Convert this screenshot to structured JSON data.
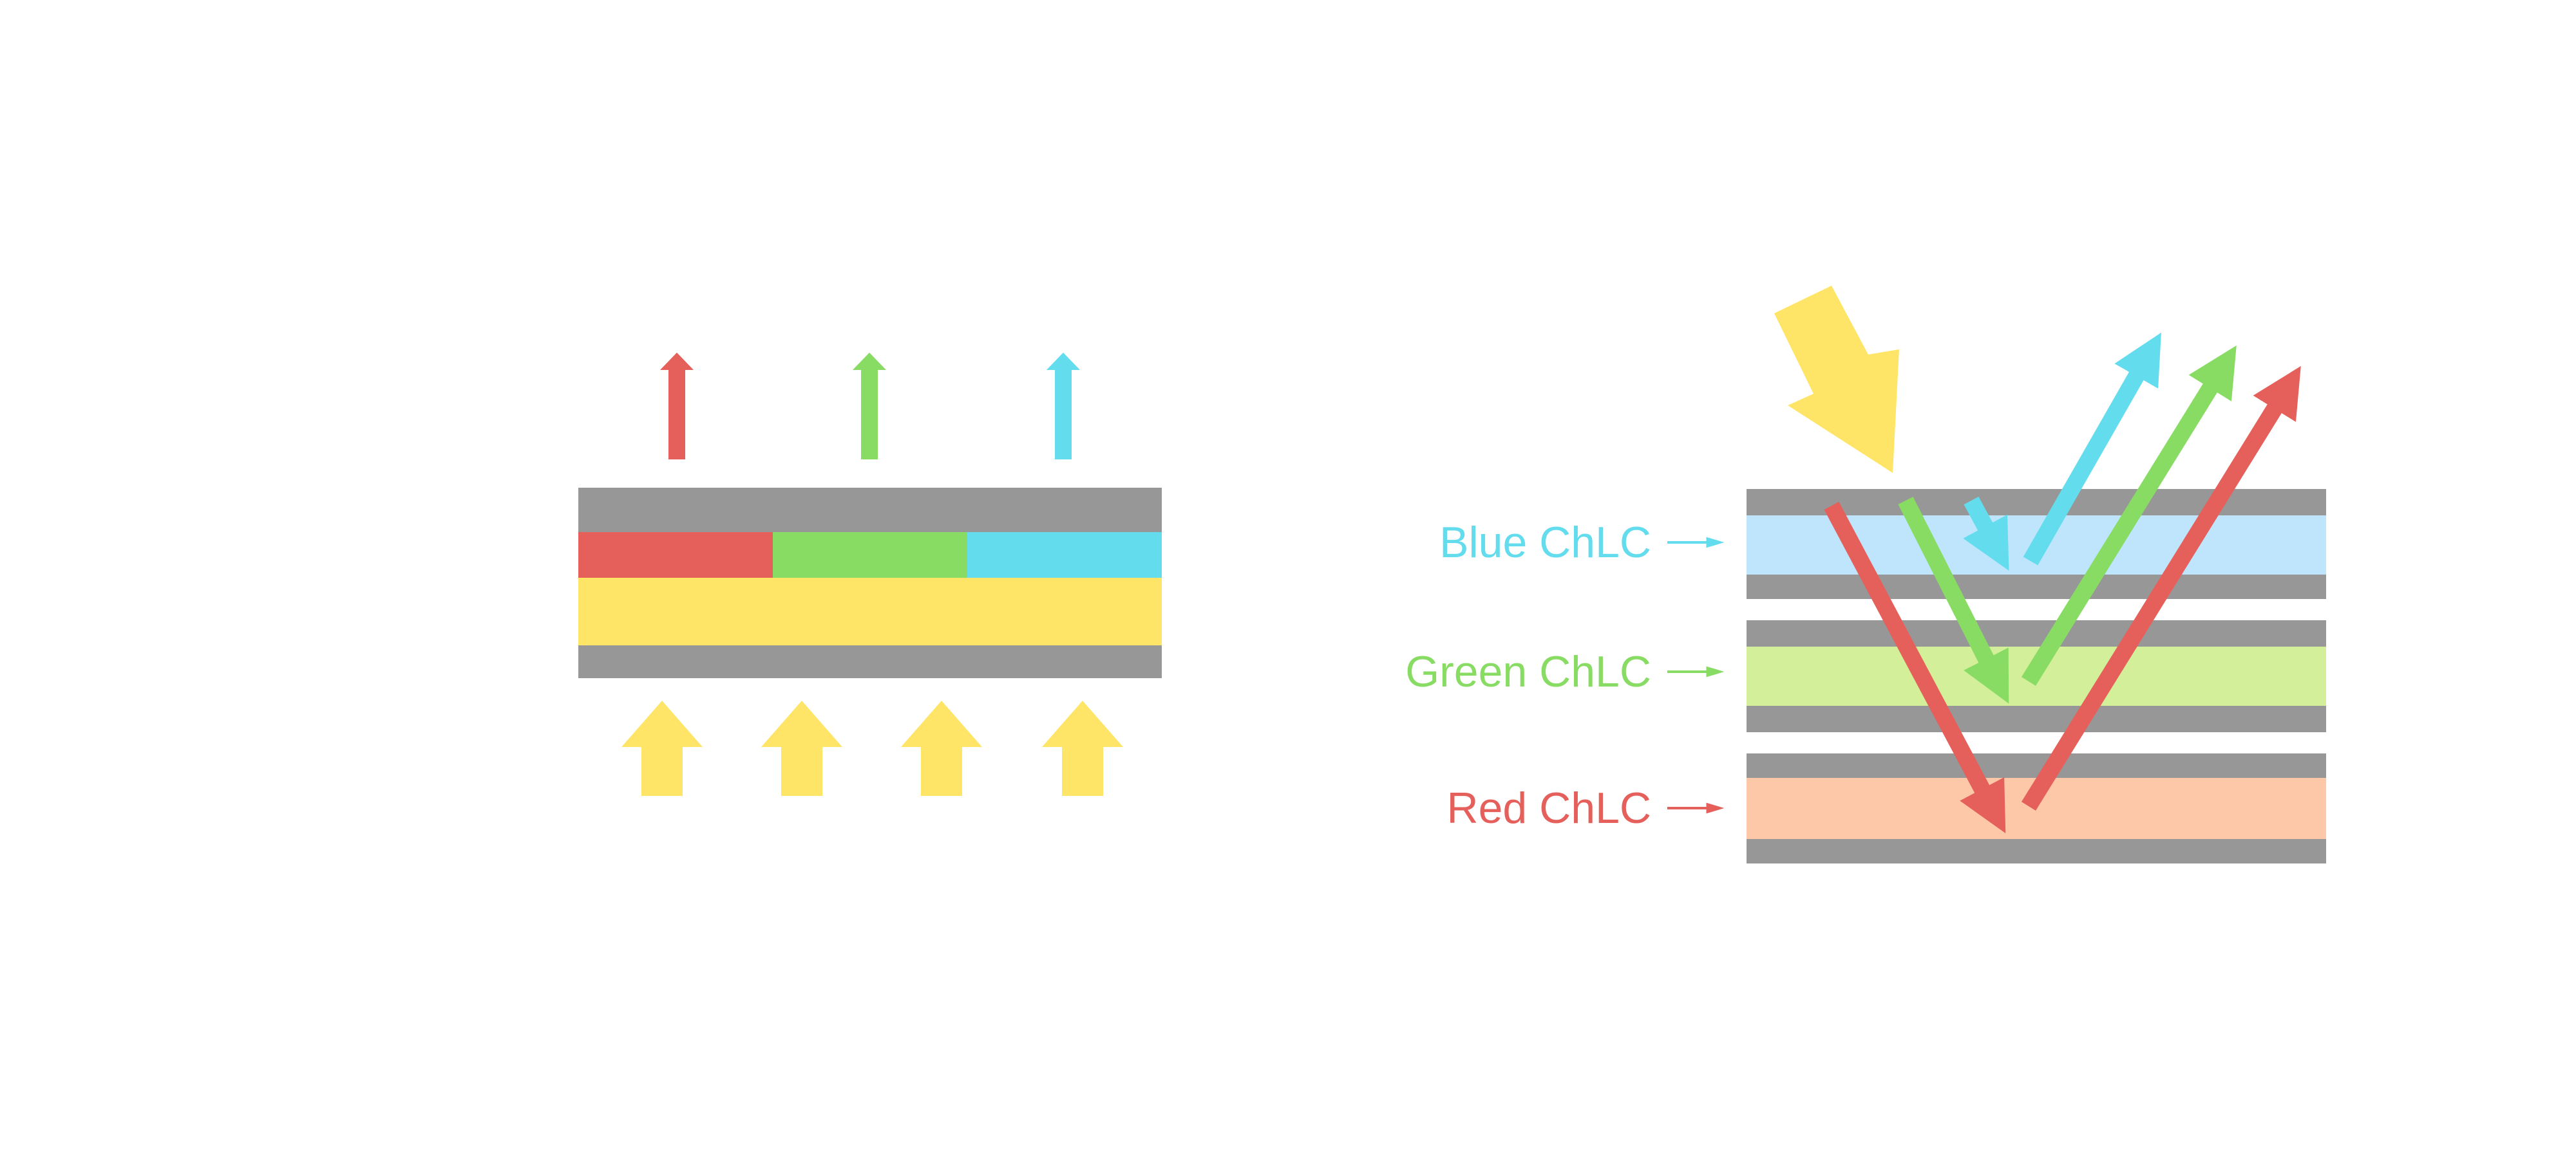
{
  "colors": {
    "red": "#E5605B",
    "green": "#88DC63",
    "blue": "#63DCEE",
    "yellow": "#FEE567",
    "gray": "#979797",
    "blue_layer": "#BEE5FC",
    "green_layer": "#D3EF99",
    "red_layer": "#FDC8A8"
  },
  "right_panel": {
    "layers": [
      {
        "label": "Blue ChLC",
        "color_key": "blue"
      },
      {
        "label": "Green ChLC",
        "color_key": "green"
      },
      {
        "label": "Red ChLC",
        "color_key": "red"
      }
    ]
  }
}
